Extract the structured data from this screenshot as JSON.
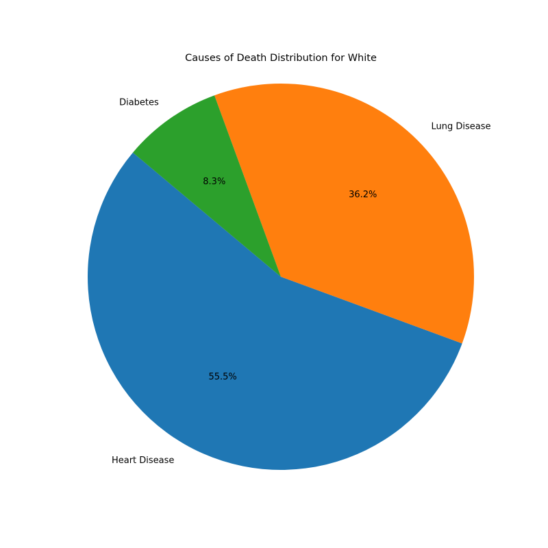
{
  "chart_data": {
    "type": "pie",
    "title": "Causes of Death Distribution for White",
    "slices": [
      {
        "label": "Heart Disease",
        "value": 55.5,
        "pct_label": "55.5%",
        "color": "#1f77b4"
      },
      {
        "label": "Lung Disease",
        "value": 36.2,
        "pct_label": "36.2%",
        "color": "#ff7f0e"
      },
      {
        "label": "Diabetes",
        "value": 8.3,
        "pct_label": "8.3%",
        "color": "#2ca02c"
      }
    ],
    "start_angle_deg": 140,
    "direction": "counterclockwise",
    "legend": "none"
  }
}
